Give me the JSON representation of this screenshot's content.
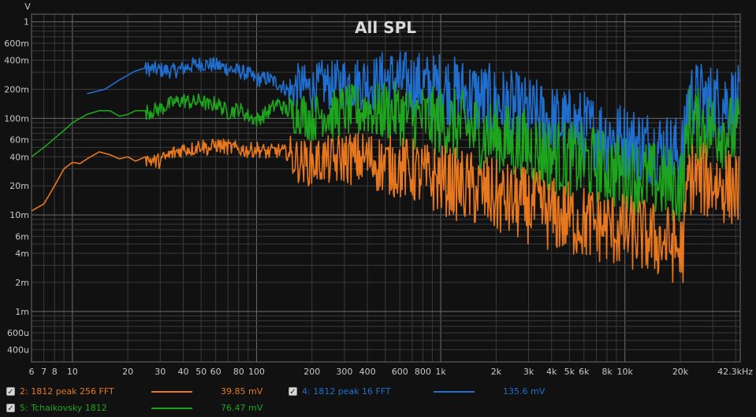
{
  "chart_data": {
    "type": "line",
    "title": "All SPL",
    "ylabel": "V",
    "x_scale": "log",
    "y_scale": "log",
    "xlim": [
      6,
      42300
    ],
    "ylim": [
      0.0003,
      1.2
    ],
    "grid": true,
    "x_tick_labels": [
      {
        "v": 6,
        "t": "6"
      },
      {
        "v": 7,
        "t": "7"
      },
      {
        "v": 8,
        "t": "8"
      },
      {
        "v": 10,
        "t": "10"
      },
      {
        "v": 20,
        "t": "20"
      },
      {
        "v": 30,
        "t": "30"
      },
      {
        "v": 40,
        "t": "40"
      },
      {
        "v": 50,
        "t": "50"
      },
      {
        "v": 60,
        "t": "60"
      },
      {
        "v": 80,
        "t": "80"
      },
      {
        "v": 100,
        "t": "100"
      },
      {
        "v": 200,
        "t": "200"
      },
      {
        "v": 300,
        "t": "300"
      },
      {
        "v": 400,
        "t": "400"
      },
      {
        "v": 600,
        "t": "600"
      },
      {
        "v": 800,
        "t": "800"
      },
      {
        "v": 1000,
        "t": "1k"
      },
      {
        "v": 2000,
        "t": "2k"
      },
      {
        "v": 3000,
        "t": "3k"
      },
      {
        "v": 4000,
        "t": "4k"
      },
      {
        "v": 5000,
        "t": "5k"
      },
      {
        "v": 6000,
        "t": "6k"
      },
      {
        "v": 8000,
        "t": "8k"
      },
      {
        "v": 10000,
        "t": "10k"
      },
      {
        "v": 20000,
        "t": "20k"
      },
      {
        "v": 42300,
        "t": "42.3kHz"
      }
    ],
    "y_tick_labels": [
      {
        "v": 1,
        "t": "1"
      },
      {
        "v": 0.6,
        "t": "600m"
      },
      {
        "v": 0.4,
        "t": "400m"
      },
      {
        "v": 0.2,
        "t": "200m"
      },
      {
        "v": 0.1,
        "t": "100m"
      },
      {
        "v": 0.06,
        "t": "60m"
      },
      {
        "v": 0.04,
        "t": "40m"
      },
      {
        "v": 0.02,
        "t": "20m"
      },
      {
        "v": 0.01,
        "t": "10m"
      },
      {
        "v": 0.006,
        "t": "6m"
      },
      {
        "v": 0.004,
        "t": "4m"
      },
      {
        "v": 0.002,
        "t": "2m"
      },
      {
        "v": 0.001,
        "t": "1m"
      },
      {
        "v": 0.0006,
        "t": "600u"
      },
      {
        "v": 0.0004,
        "t": "400u"
      }
    ],
    "series": [
      {
        "name": "4: 1812 peak 16 FFT",
        "color": "#1f6fd0",
        "x": [
          12,
          15,
          18,
          22,
          26,
          30,
          35,
          40,
          45,
          50,
          60,
          70,
          80,
          90,
          100,
          115,
          130,
          150,
          170,
          200,
          230,
          260,
          300,
          350,
          400,
          450,
          500,
          600,
          700,
          800,
          900,
          1000,
          1200,
          1500,
          1800,
          2000,
          2500,
          3000,
          3500,
          4000,
          5000,
          6000,
          7000,
          8000,
          10000,
          12000,
          15000,
          18000,
          20000,
          21000,
          22000,
          25000,
          30000,
          35000,
          42000
        ],
        "y": [
          0.18,
          0.2,
          0.25,
          0.31,
          0.34,
          0.33,
          0.32,
          0.34,
          0.37,
          0.38,
          0.37,
          0.34,
          0.32,
          0.3,
          0.26,
          0.27,
          0.24,
          0.2,
          0.25,
          0.22,
          0.26,
          0.24,
          0.27,
          0.26,
          0.28,
          0.26,
          0.3,
          0.28,
          0.27,
          0.26,
          0.24,
          0.26,
          0.22,
          0.2,
          0.18,
          0.17,
          0.15,
          0.13,
          0.12,
          0.11,
          0.1,
          0.095,
          0.085,
          0.08,
          0.07,
          0.065,
          0.06,
          0.055,
          0.05,
          0.06,
          0.2,
          0.19,
          0.18,
          0.18,
          0.17
        ],
        "value_label": "135.6 mV"
      },
      {
        "name": "5: Tchaikovsky 1812",
        "color": "#1ea51e",
        "x": [
          6,
          7,
          8,
          9,
          10,
          11,
          12,
          14,
          16,
          18,
          20,
          22,
          25,
          30,
          35,
          40,
          45,
          50,
          55,
          60,
          70,
          80,
          90,
          100,
          115,
          130,
          150,
          170,
          200,
          230,
          260,
          300,
          350,
          400,
          450,
          500,
          600,
          700,
          800,
          900,
          1000,
          1200,
          1500,
          1800,
          2000,
          2500,
          3000,
          3500,
          4000,
          5000,
          6000,
          7000,
          8000,
          10000,
          12000,
          15000,
          18000,
          20000,
          21000,
          22000,
          25000,
          30000,
          35000,
          42000
        ],
        "y": [
          0.04,
          0.05,
          0.062,
          0.075,
          0.09,
          0.1,
          0.11,
          0.12,
          0.12,
          0.105,
          0.11,
          0.12,
          0.12,
          0.13,
          0.15,
          0.16,
          0.15,
          0.16,
          0.14,
          0.15,
          0.12,
          0.13,
          0.11,
          0.1,
          0.12,
          0.15,
          0.12,
          0.13,
          0.11,
          0.13,
          0.12,
          0.14,
          0.13,
          0.15,
          0.13,
          0.14,
          0.13,
          0.12,
          0.12,
          0.11,
          0.11,
          0.1,
          0.09,
          0.08,
          0.075,
          0.065,
          0.06,
          0.055,
          0.05,
          0.045,
          0.042,
          0.04,
          0.036,
          0.032,
          0.03,
          0.027,
          0.025,
          0.024,
          0.03,
          0.11,
          0.1,
          0.095,
          0.09,
          0.08
        ],
        "value_label": "76.47 mV"
      },
      {
        "name": "2: 1812 peak 256 FFT",
        "color": "#e8781e",
        "x": [
          6,
          7,
          8,
          9,
          10,
          11,
          12,
          14,
          16,
          18,
          20,
          22,
          25,
          28,
          30,
          35,
          40,
          45,
          50,
          55,
          60,
          70,
          80,
          90,
          100,
          115,
          130,
          150,
          170,
          200,
          230,
          260,
          300,
          350,
          400,
          450,
          500,
          600,
          700,
          800,
          900,
          1000,
          1200,
          1500,
          1800,
          2000,
          2500,
          3000,
          3500,
          4000,
          5000,
          6000,
          7000,
          8000,
          10000,
          12000,
          15000,
          18000,
          20000,
          21000,
          22000,
          25000,
          30000,
          35000,
          42000
        ],
        "y": [
          0.011,
          0.013,
          0.02,
          0.03,
          0.035,
          0.034,
          0.038,
          0.045,
          0.042,
          0.038,
          0.04,
          0.036,
          0.04,
          0.037,
          0.038,
          0.045,
          0.05,
          0.05,
          0.055,
          0.05,
          0.055,
          0.052,
          0.05,
          0.048,
          0.05,
          0.046,
          0.048,
          0.045,
          0.04,
          0.038,
          0.042,
          0.04,
          0.045,
          0.043,
          0.044,
          0.04,
          0.038,
          0.036,
          0.034,
          0.03,
          0.028,
          0.028,
          0.025,
          0.022,
          0.02,
          0.018,
          0.016,
          0.015,
          0.014,
          0.012,
          0.011,
          0.01,
          0.0095,
          0.009,
          0.008,
          0.0075,
          0.0065,
          0.006,
          0.005,
          0.006,
          0.03,
          0.028,
          0.026,
          0.024,
          0.022
        ],
        "value_label": "39.85 mV"
      }
    ]
  },
  "legend": {
    "checkmark": "✓",
    "items": [
      {
        "name": "2: 1812 peak 256 FFT",
        "color": "#e8781e",
        "value": "39.85 mV"
      },
      {
        "name": "4: 1812 peak 16 FFT",
        "color": "#1f6fd0",
        "value": "135.6 mV"
      },
      {
        "name": "5: Tchaikovsky 1812",
        "color": "#1ea51e",
        "value": "76.47 mV"
      }
    ]
  }
}
